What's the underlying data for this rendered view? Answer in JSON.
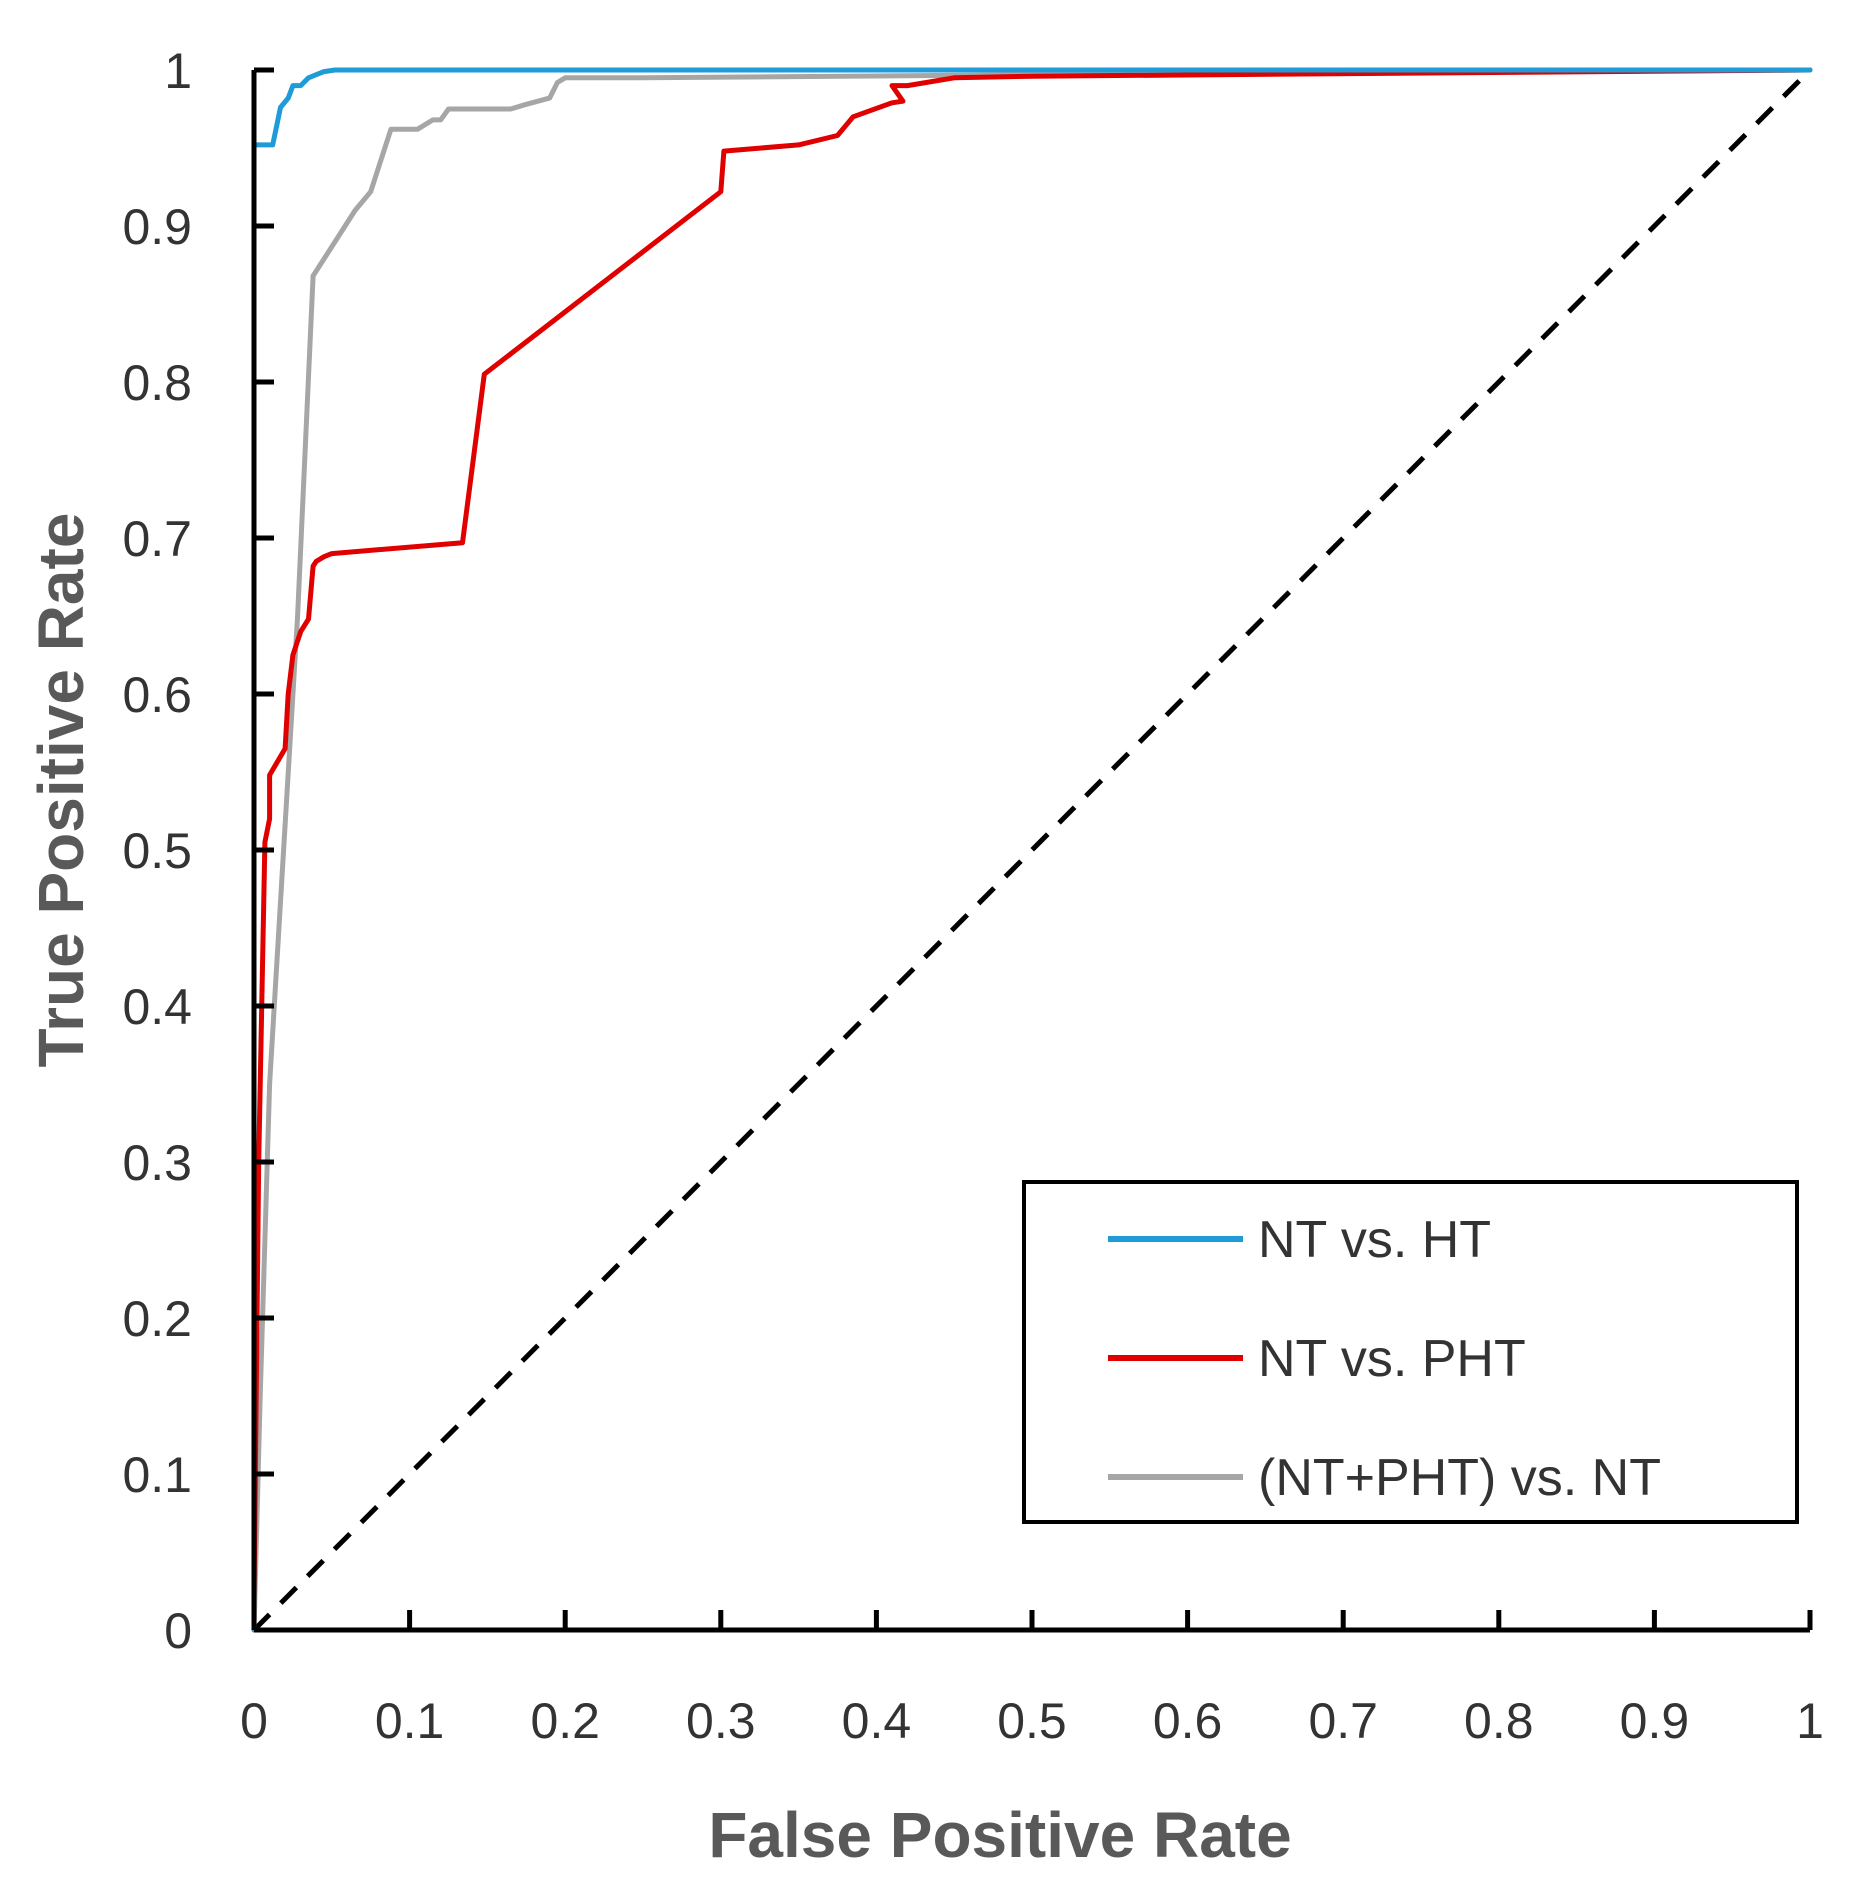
{
  "chart_data": {
    "type": "line",
    "title": "",
    "xlabel": "False Positive Rate",
    "ylabel": "True Positive Rate",
    "xlim": [
      0,
      1
    ],
    "ylim": [
      0,
      1
    ],
    "xticks": [
      "0",
      "0.1",
      "0.2",
      "0.3",
      "0.4",
      "0.5",
      "0.6",
      "0.7",
      "0.8",
      "0.9",
      "1"
    ],
    "yticks": [
      "0",
      "0.1",
      "0.2",
      "0.3",
      "0.4",
      "0.5",
      "0.6",
      "0.7",
      "0.8",
      "0.9",
      "1"
    ],
    "grid": false,
    "legend_position": "bottom-right",
    "reference_line": {
      "name": "random",
      "style": "dashed",
      "color": "#000000",
      "x": [
        0,
        1
      ],
      "y": [
        0,
        1
      ]
    },
    "series": [
      {
        "name": "NT vs. HT",
        "color": "#1f9bd7",
        "x": [
          0,
          0,
          0.002,
          0.012,
          0.017,
          0.022,
          0.025,
          0.03,
          0.035,
          0.04,
          0.045,
          0.052,
          0.06,
          0.3,
          1.0
        ],
        "y": [
          0,
          0.952,
          0.952,
          0.952,
          0.976,
          0.982,
          0.99,
          0.99,
          0.995,
          0.997,
          0.999,
          1.0,
          1.0,
          1.0,
          1.0
        ]
      },
      {
        "name": "NT vs. PHT",
        "color": "#e00000",
        "x": [
          0,
          0.003,
          0.007,
          0.01,
          0.01,
          0.02,
          0.022,
          0.025,
          0.03,
          0.035,
          0.038,
          0.04,
          0.045,
          0.05,
          0.134,
          0.148,
          0.3,
          0.302,
          0.35,
          0.375,
          0.385,
          0.41,
          0.417,
          0.41,
          0.42,
          0.45,
          0.5,
          1.0
        ],
        "y": [
          0.02,
          0.3,
          0.505,
          0.52,
          0.548,
          0.565,
          0.6,
          0.625,
          0.64,
          0.648,
          0.682,
          0.685,
          0.688,
          0.69,
          0.697,
          0.805,
          0.922,
          0.948,
          0.952,
          0.958,
          0.97,
          0.979,
          0.98,
          0.99,
          0.99,
          0.995,
          0.996,
          1.0
        ]
      },
      {
        "name": "(NT+PHT) vs. NT",
        "color": "#a6a6a6",
        "x": [
          0,
          0.004,
          0.01,
          0.028,
          0.038,
          0.065,
          0.075,
          0.088,
          0.09,
          0.105,
          0.115,
          0.12,
          0.125,
          0.13,
          0.165,
          0.175,
          0.19,
          0.195,
          0.2,
          0.25,
          0.5,
          1.0
        ],
        "y": [
          0,
          0.15,
          0.35,
          0.65,
          0.868,
          0.91,
          0.922,
          0.962,
          0.962,
          0.962,
          0.968,
          0.968,
          0.975,
          0.975,
          0.975,
          0.978,
          0.982,
          0.992,
          0.995,
          0.995,
          0.997,
          1.0
        ]
      }
    ]
  }
}
